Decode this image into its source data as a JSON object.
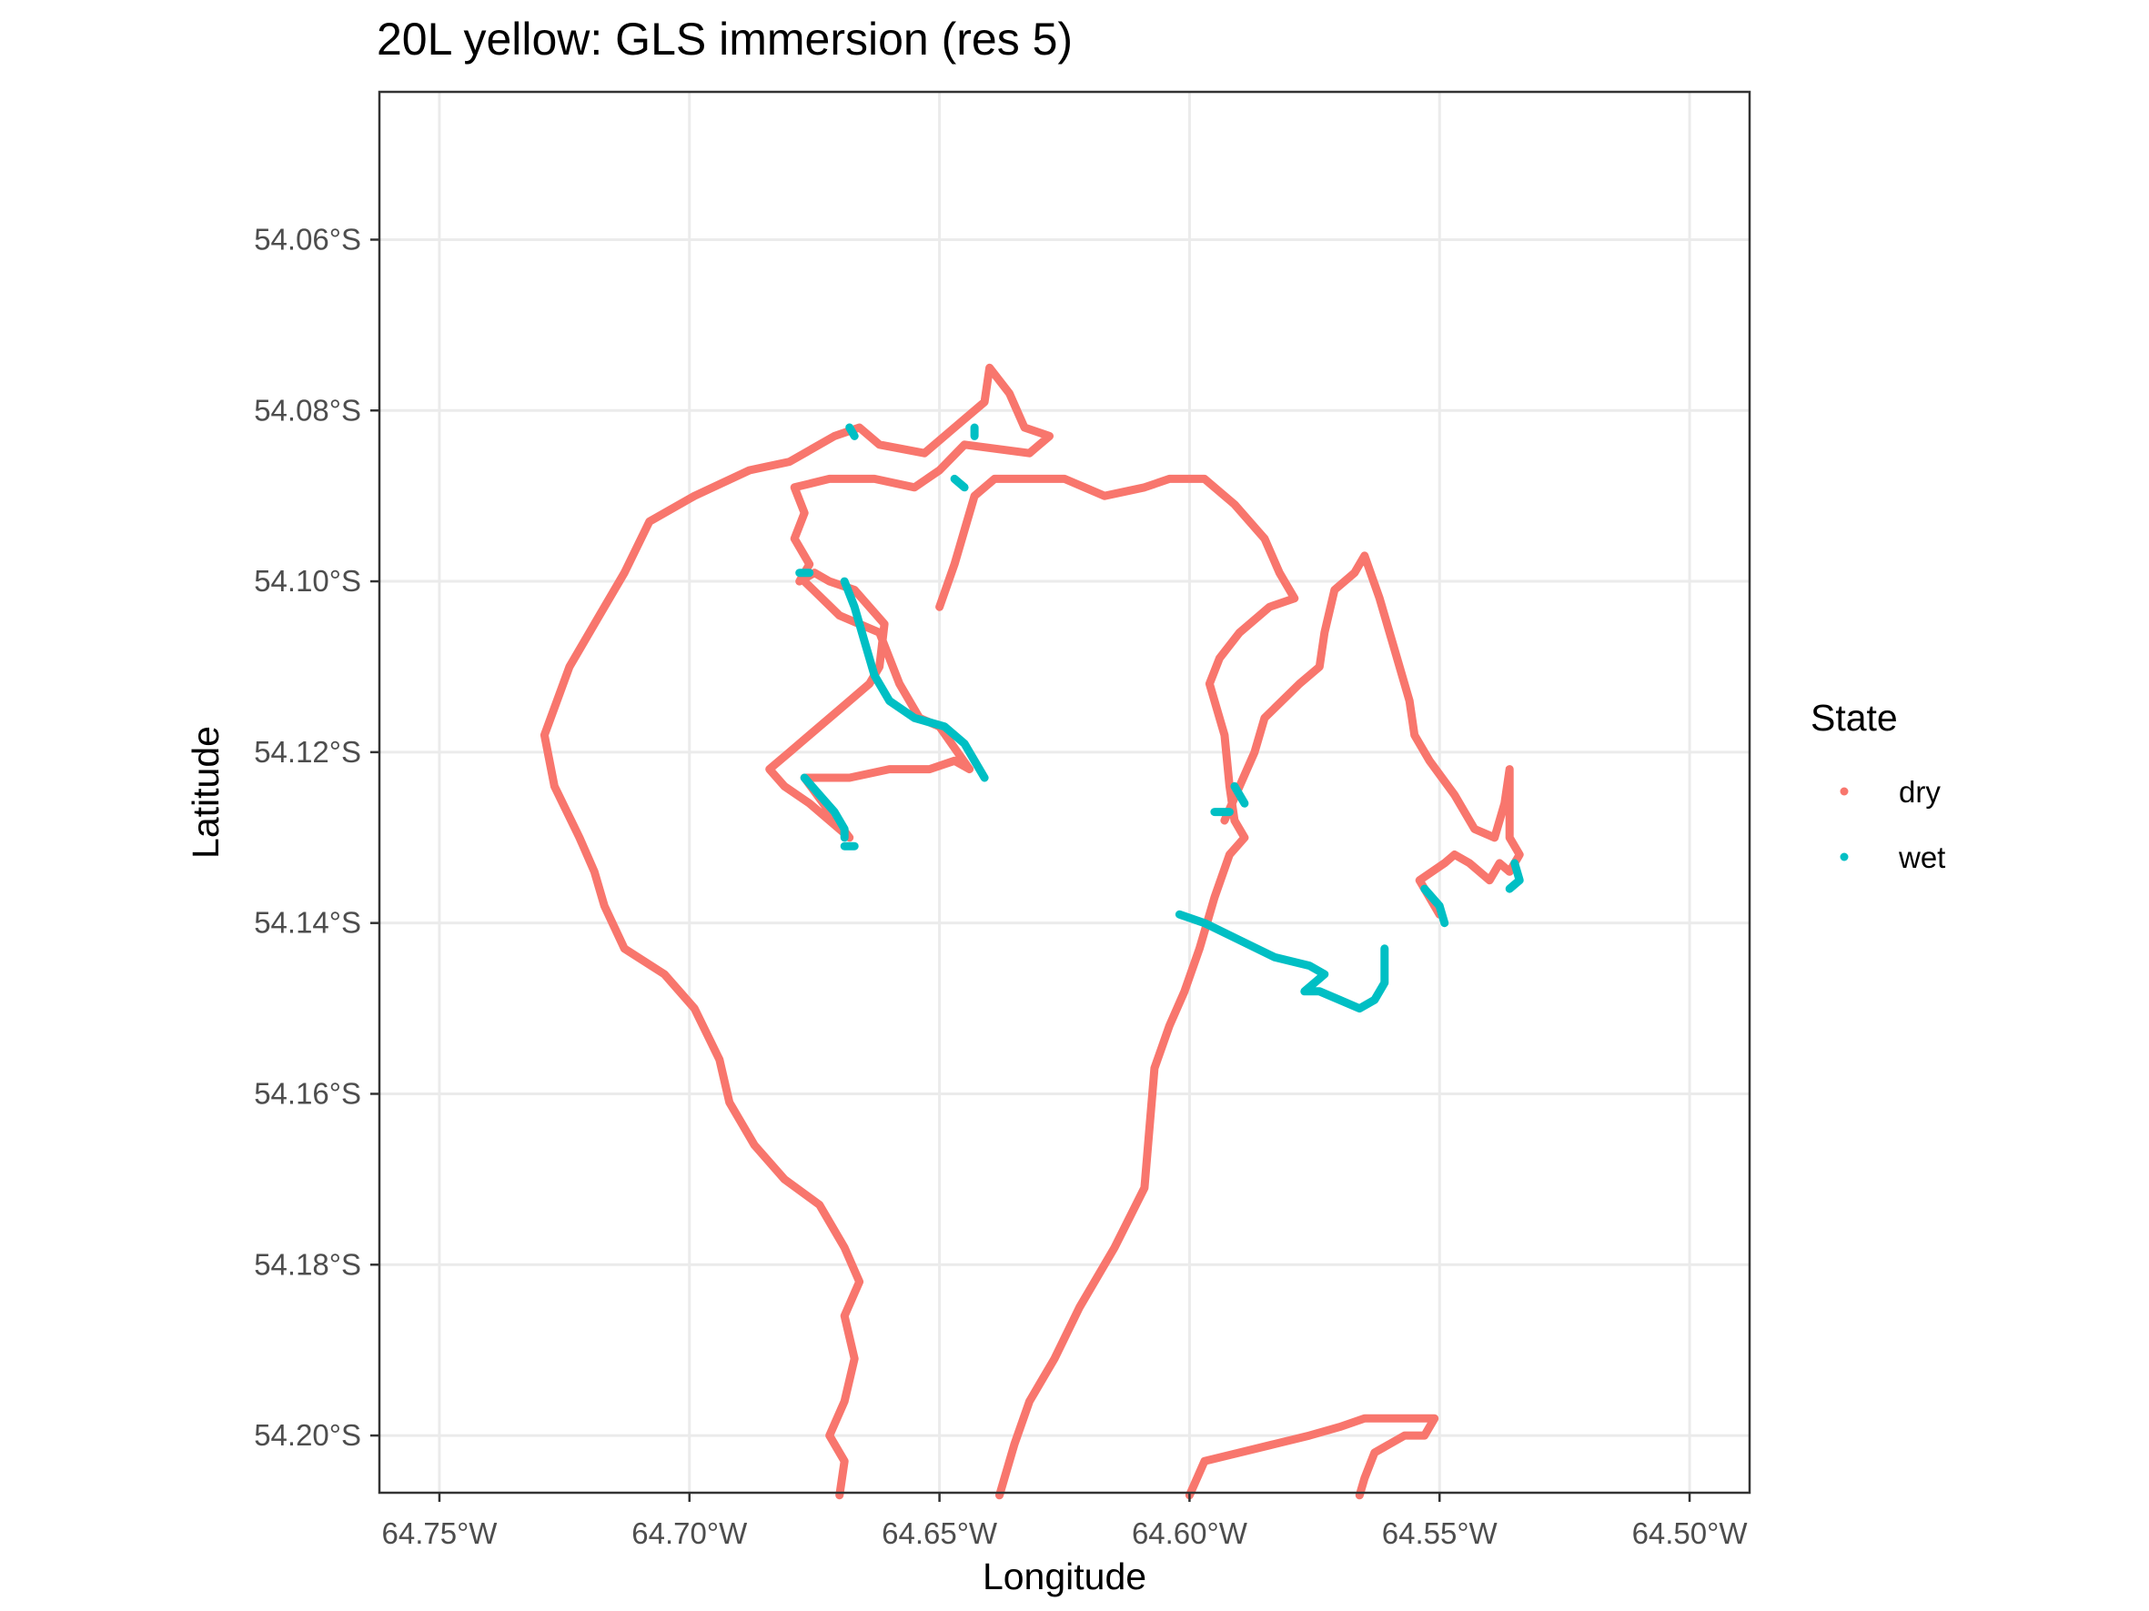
{
  "chart_data": {
    "type": "scatter",
    "title": "20L yellow: GLS immersion (res 5)",
    "xlabel": "Longitude",
    "ylabel": "Latitude",
    "xlim": [
      -64.762,
      -64.488
    ],
    "ylim": [
      -54.2067,
      -54.0427
    ],
    "x_ticks": [
      {
        "value": -64.75,
        "label": "64.75°W"
      },
      {
        "value": -64.7,
        "label": "64.70°W"
      },
      {
        "value": -64.65,
        "label": "64.65°W"
      },
      {
        "value": -64.6,
        "label": "64.60°W"
      },
      {
        "value": -64.55,
        "label": "64.55°W"
      },
      {
        "value": -64.5,
        "label": "64.50°W"
      }
    ],
    "y_ticks": [
      {
        "value": -54.06,
        "label": "54.06°S"
      },
      {
        "value": -54.08,
        "label": "54.08°S"
      },
      {
        "value": -54.1,
        "label": "54.10°S"
      },
      {
        "value": -54.12,
        "label": "54.12°S"
      },
      {
        "value": -54.14,
        "label": "54.14°S"
      },
      {
        "value": -54.16,
        "label": "54.16°S"
      },
      {
        "value": -54.18,
        "label": "54.18°S"
      },
      {
        "value": -54.2,
        "label": "54.20°S"
      }
    ],
    "grid": true,
    "legend": {
      "title": "State",
      "position": "right"
    },
    "series": [
      {
        "name": "dry",
        "color": "#F8766D",
        "tracks": [
          [
            [
              -64.67,
              -54.207
            ],
            [
              -64.669,
              -54.203
            ],
            [
              -64.672,
              -54.2
            ],
            [
              -64.669,
              -54.196
            ],
            [
              -64.667,
              -54.191
            ],
            [
              -64.669,
              -54.186
            ],
            [
              -64.666,
              -54.182
            ],
            [
              -64.669,
              -54.178
            ],
            [
              -64.674,
              -54.173
            ],
            [
              -64.681,
              -54.17
            ],
            [
              -64.687,
              -54.166
            ],
            [
              -64.692,
              -54.161
            ],
            [
              -64.694,
              -54.156
            ],
            [
              -64.699,
              -54.15
            ],
            [
              -64.705,
              -54.146
            ],
            [
              -64.713,
              -54.143
            ],
            [
              -64.717,
              -54.138
            ],
            [
              -64.719,
              -54.134
            ],
            [
              -64.722,
              -54.13
            ],
            [
              -64.727,
              -54.124
            ],
            [
              -64.729,
              -54.118
            ],
            [
              -64.724,
              -54.11
            ],
            [
              -64.718,
              -54.104
            ],
            [
              -64.713,
              -54.099
            ],
            [
              -64.708,
              -54.093
            ],
            [
              -64.699,
              -54.09
            ],
            [
              -64.688,
              -54.087
            ],
            [
              -64.68,
              -54.086
            ],
            [
              -64.671,
              -54.083
            ],
            [
              -64.666,
              -54.082
            ],
            [
              -64.662,
              -54.084
            ],
            [
              -64.653,
              -54.085
            ],
            [
              -64.647,
              -54.082
            ],
            [
              -64.641,
              -54.079
            ],
            [
              -64.64,
              -54.075
            ],
            [
              -64.636,
              -54.078
            ],
            [
              -64.633,
              -54.082
            ],
            [
              -64.628,
              -54.083
            ],
            [
              -64.632,
              -54.085
            ],
            [
              -64.645,
              -54.084
            ],
            [
              -64.65,
              -54.087
            ],
            [
              -64.655,
              -54.089
            ],
            [
              -64.663,
              -54.088
            ],
            [
              -64.672,
              -54.088
            ],
            [
              -64.679,
              -54.089
            ],
            [
              -64.677,
              -54.092
            ],
            [
              -64.679,
              -54.095
            ],
            [
              -64.676,
              -54.098
            ],
            [
              -64.678,
              -54.1
            ],
            [
              -64.675,
              -54.099
            ],
            [
              -64.672,
              -54.1
            ],
            [
              -64.667,
              -54.101
            ],
            [
              -64.661,
              -54.105
            ],
            [
              -64.662,
              -54.11
            ],
            [
              -64.664,
              -54.112
            ],
            [
              -64.67,
              -54.115
            ],
            [
              -64.68,
              -54.12
            ],
            [
              -64.684,
              -54.122
            ],
            [
              -64.681,
              -54.124
            ],
            [
              -64.676,
              -54.126
            ],
            [
              -64.67,
              -54.129
            ],
            [
              -64.668,
              -54.13
            ],
            [
              -64.672,
              -54.127
            ],
            [
              -64.677,
              -54.123
            ],
            [
              -64.668,
              -54.123
            ],
            [
              -64.66,
              -54.122
            ],
            [
              -64.652,
              -54.122
            ],
            [
              -64.647,
              -54.121
            ],
            [
              -64.644,
              -54.122
            ],
            [
              -64.65,
              -54.117
            ],
            [
              -64.654,
              -54.116
            ],
            [
              -64.658,
              -54.112
            ],
            [
              -64.662,
              -54.106
            ],
            [
              -64.67,
              -54.104
            ],
            [
              -64.677,
              -54.1
            ]
          ],
          [
            [
              -64.65,
              -54.103
            ],
            [
              -64.647,
              -54.098
            ],
            [
              -64.645,
              -54.094
            ],
            [
              -64.643,
              -54.09
            ],
            [
              -64.639,
              -54.088
            ],
            [
              -64.634,
              -54.088
            ],
            [
              -64.625,
              -54.088
            ],
            [
              -64.617,
              -54.09
            ],
            [
              -64.609,
              -54.089
            ],
            [
              -64.604,
              -54.088
            ],
            [
              -64.597,
              -54.088
            ],
            [
              -64.591,
              -54.091
            ],
            [
              -64.585,
              -54.095
            ],
            [
              -64.582,
              -54.099
            ],
            [
              -64.579,
              -54.102
            ],
            [
              -64.584,
              -54.103
            ],
            [
              -64.59,
              -54.106
            ],
            [
              -64.594,
              -54.109
            ],
            [
              -64.596,
              -54.112
            ],
            [
              -64.593,
              -54.118
            ],
            [
              -64.592,
              -54.124
            ],
            [
              -64.591,
              -54.128
            ],
            [
              -64.589,
              -54.13
            ],
            [
              -64.592,
              -54.132
            ],
            [
              -64.595,
              -54.137
            ],
            [
              -64.598,
              -54.143
            ],
            [
              -64.601,
              -54.148
            ],
            [
              -64.604,
              -54.152
            ],
            [
              -64.607,
              -54.157
            ],
            [
              -64.608,
              -54.164
            ],
            [
              -64.609,
              -54.171
            ],
            [
              -64.615,
              -54.178
            ],
            [
              -64.622,
              -54.185
            ],
            [
              -64.627,
              -54.191
            ],
            [
              -64.632,
              -54.196
            ],
            [
              -64.635,
              -54.201
            ],
            [
              -64.637,
              -54.205
            ],
            [
              -64.638,
              -54.207
            ]
          ],
          [
            [
              -64.593,
              -54.128
            ],
            [
              -64.59,
              -54.124
            ],
            [
              -64.587,
              -54.12
            ],
            [
              -64.585,
              -54.116
            ],
            [
              -64.578,
              -54.112
            ],
            [
              -64.574,
              -54.11
            ],
            [
              -64.573,
              -54.106
            ],
            [
              -64.571,
              -54.101
            ],
            [
              -64.567,
              -54.099
            ],
            [
              -64.565,
              -54.097
            ],
            [
              -64.562,
              -54.102
            ],
            [
              -64.559,
              -54.108
            ],
            [
              -64.556,
              -54.114
            ],
            [
              -64.555,
              -54.118
            ],
            [
              -64.552,
              -54.121
            ],
            [
              -64.547,
              -54.125
            ],
            [
              -64.543,
              -54.129
            ],
            [
              -64.539,
              -54.13
            ],
            [
              -64.537,
              -54.126
            ],
            [
              -64.536,
              -54.122
            ],
            [
              -64.536,
              -54.13
            ],
            [
              -64.534,
              -54.132
            ],
            [
              -64.536,
              -54.134
            ],
            [
              -64.538,
              -54.133
            ],
            [
              -64.54,
              -54.135
            ],
            [
              -64.544,
              -54.133
            ],
            [
              -64.547,
              -54.132
            ],
            [
              -64.549,
              -54.133
            ],
            [
              -64.554,
              -54.135
            ],
            [
              -64.55,
              -54.139
            ]
          ],
          [
            [
              -64.6,
              -54.207
            ],
            [
              -64.597,
              -54.203
            ],
            [
              -64.59,
              -54.202
            ],
            [
              -64.583,
              -54.201
            ],
            [
              -64.576,
              -54.2
            ],
            [
              -64.57,
              -54.199
            ],
            [
              -64.565,
              -54.198
            ],
            [
              -64.56,
              -54.198
            ],
            [
              -64.555,
              -54.198
            ],
            [
              -64.551,
              -54.198
            ],
            [
              -64.553,
              -54.2
            ],
            [
              -64.557,
              -54.2
            ],
            [
              -64.563,
              -54.202
            ],
            [
              -64.565,
              -54.205
            ],
            [
              -64.566,
              -54.207
            ]
          ]
        ]
      },
      {
        "name": "wet",
        "color": "#00BFC4",
        "tracks": [
          [
            [
              -64.669,
              -54.1
            ],
            [
              -64.667,
              -54.103
            ],
            [
              -64.665,
              -54.107
            ],
            [
              -64.663,
              -54.111
            ],
            [
              -64.66,
              -54.114
            ],
            [
              -64.655,
              -54.116
            ],
            [
              -64.649,
              -54.117
            ],
            [
              -64.645,
              -54.119
            ],
            [
              -64.643,
              -54.121
            ],
            [
              -64.641,
              -54.123
            ]
          ],
          [
            [
              -64.677,
              -54.123
            ],
            [
              -64.674,
              -54.125
            ],
            [
              -64.671,
              -54.127
            ],
            [
              -64.669,
              -54.129
            ],
            [
              -64.669,
              -54.13
            ]
          ],
          [
            [
              -64.602,
              -54.139
            ],
            [
              -64.597,
              -54.14
            ],
            [
              -64.59,
              -54.142
            ],
            [
              -64.583,
              -54.144
            ],
            [
              -64.576,
              -54.145
            ],
            [
              -64.573,
              -54.146
            ],
            [
              -64.577,
              -54.148
            ],
            [
              -64.574,
              -54.148
            ],
            [
              -64.57,
              -54.149
            ],
            [
              -64.566,
              -54.15
            ],
            [
              -64.563,
              -54.149
            ],
            [
              -64.561,
              -54.147
            ],
            [
              -64.561,
              -54.143
            ]
          ],
          [
            [
              -64.595,
              -54.127
            ],
            [
              -64.592,
              -54.127
            ]
          ],
          [
            [
              -64.591,
              -54.124
            ],
            [
              -64.589,
              -54.126
            ]
          ],
          [
            [
              -64.553,
              -54.136
            ],
            [
              -64.55,
              -54.138
            ],
            [
              -64.549,
              -54.14
            ]
          ],
          [
            [
              -64.535,
              -54.133
            ],
            [
              -64.534,
              -54.135
            ],
            [
              -64.536,
              -54.136
            ]
          ],
          [
            [
              -64.668,
              -54.082
            ],
            [
              -64.667,
              -54.083
            ]
          ],
          [
            [
              -64.643,
              -54.082
            ],
            [
              -64.643,
              -54.083
            ]
          ],
          [
            [
              -64.647,
              -54.088
            ],
            [
              -64.645,
              -54.089
            ]
          ],
          [
            [
              -64.678,
              -54.099
            ],
            [
              -64.676,
              -54.099
            ]
          ],
          [
            [
              -64.669,
              -54.131
            ],
            [
              -64.667,
              -54.131
            ]
          ]
        ]
      }
    ]
  }
}
